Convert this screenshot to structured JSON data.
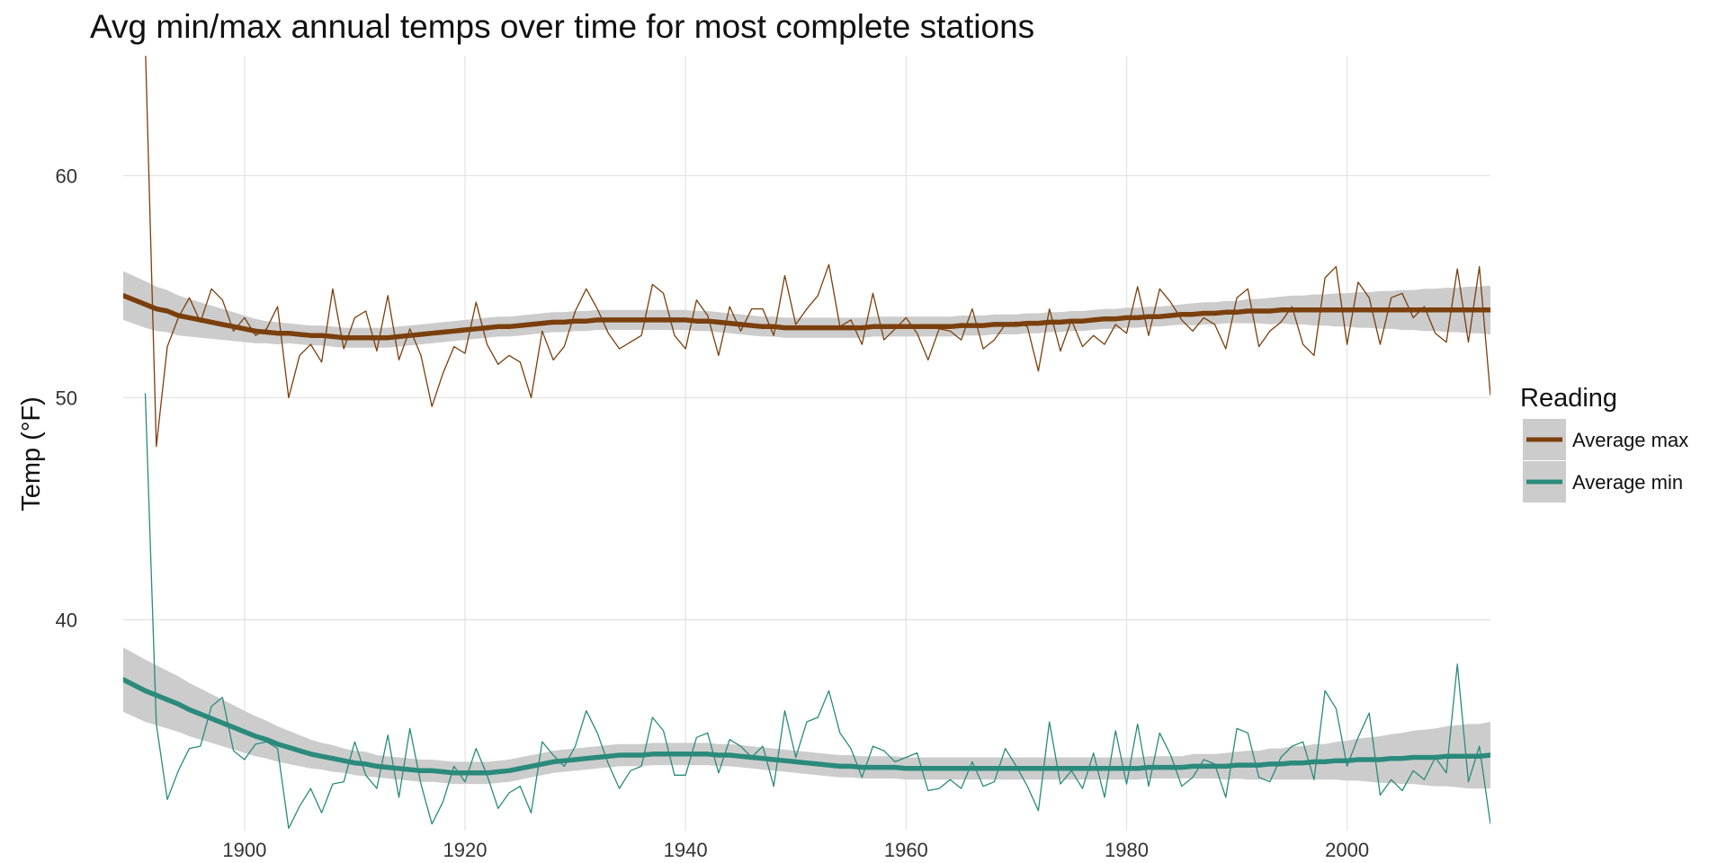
{
  "chart_data": {
    "type": "line",
    "title": "Avg min/max annual temps over time for most complete stations",
    "xlabel": "",
    "ylabel": "Temp (°F)",
    "xlim": [
      1889,
      2013
    ],
    "ylim": [
      30.5,
      65.4
    ],
    "x_ticks": [
      1900,
      1920,
      1940,
      1960,
      1980,
      2000
    ],
    "y_ticks": [
      40,
      50,
      60
    ],
    "grid": true,
    "legend": {
      "title": "Reading",
      "position": "right"
    },
    "x": [
      1891,
      1892,
      1893,
      1894,
      1895,
      1896,
      1897,
      1898,
      1899,
      1900,
      1901,
      1902,
      1903,
      1904,
      1905,
      1906,
      1907,
      1908,
      1909,
      1910,
      1911,
      1912,
      1913,
      1914,
      1915,
      1916,
      1917,
      1918,
      1919,
      1920,
      1921,
      1922,
      1923,
      1924,
      1925,
      1926,
      1927,
      1928,
      1929,
      1930,
      1931,
      1932,
      1933,
      1934,
      1935,
      1936,
      1937,
      1938,
      1939,
      1940,
      1941,
      1942,
      1943,
      1944,
      1945,
      1946,
      1947,
      1948,
      1949,
      1950,
      1951,
      1952,
      1953,
      1954,
      1955,
      1956,
      1957,
      1958,
      1959,
      1960,
      1961,
      1962,
      1963,
      1964,
      1965,
      1966,
      1967,
      1968,
      1969,
      1970,
      1971,
      1972,
      1973,
      1974,
      1975,
      1976,
      1977,
      1978,
      1979,
      1980,
      1981,
      1982,
      1983,
      1984,
      1985,
      1986,
      1987,
      1988,
      1989,
      1990,
      1991,
      1992,
      1993,
      1994,
      1995,
      1996,
      1997,
      1998,
      1999,
      2000,
      2001,
      2002,
      2003,
      2004,
      2005,
      2006,
      2007,
      2008,
      2009,
      2010,
      2011,
      2012,
      2013
    ],
    "series": [
      {
        "name": "Average max",
        "color": "#7a3f0c",
        "values": [
          66.0,
          47.8,
          52.3,
          53.6,
          54.5,
          53.4,
          54.9,
          54.4,
          53.0,
          53.6,
          52.8,
          53.1,
          54.1,
          50.0,
          51.9,
          52.4,
          51.6,
          54.9,
          52.2,
          53.6,
          53.9,
          52.1,
          54.6,
          51.7,
          53.1,
          51.9,
          49.6,
          51.1,
          52.3,
          52.0,
          54.3,
          52.4,
          51.5,
          51.9,
          51.6,
          50.0,
          53.0,
          51.7,
          52.3,
          53.9,
          54.9,
          54.0,
          52.9,
          52.2,
          52.5,
          52.8,
          55.1,
          54.7,
          52.8,
          52.2,
          54.4,
          53.7,
          51.9,
          54.1,
          53.0,
          54.0,
          54.0,
          52.8,
          55.5,
          53.3,
          54.0,
          54.6,
          56.0,
          53.2,
          53.5,
          52.4,
          54.7,
          52.6,
          53.1,
          53.6,
          52.9,
          51.7,
          53.1,
          53.0,
          52.6,
          54.0,
          52.2,
          52.6,
          53.3,
          53.4,
          53.2,
          51.2,
          54.0,
          52.1,
          53.5,
          52.3,
          52.8,
          52.4,
          53.3,
          52.9,
          55.0,
          52.8,
          54.9,
          54.3,
          53.5,
          53.0,
          53.6,
          53.3,
          52.2,
          54.5,
          54.9,
          52.3,
          53.0,
          53.4,
          54.1,
          52.4,
          51.9,
          55.4,
          55.9,
          52.4,
          55.2,
          54.5,
          52.4,
          54.5,
          54.7,
          53.6,
          54.1,
          52.9,
          52.5,
          55.8,
          52.5,
          55.9,
          50.1
        ],
        "smooth": [
          54.2,
          54.0,
          53.9,
          53.7,
          53.6,
          53.5,
          53.4,
          53.3,
          53.2,
          53.1,
          53.0,
          52.95,
          52.9,
          52.9,
          52.85,
          52.8,
          52.8,
          52.75,
          52.7,
          52.7,
          52.7,
          52.7,
          52.7,
          52.75,
          52.8,
          52.85,
          52.9,
          52.95,
          53.0,
          53.05,
          53.1,
          53.15,
          53.2,
          53.2,
          53.25,
          53.3,
          53.35,
          53.4,
          53.4,
          53.45,
          53.45,
          53.5,
          53.5,
          53.5,
          53.5,
          53.5,
          53.5,
          53.5,
          53.5,
          53.5,
          53.45,
          53.45,
          53.4,
          53.35,
          53.3,
          53.25,
          53.2,
          53.2,
          53.15,
          53.15,
          53.15,
          53.15,
          53.15,
          53.15,
          53.15,
          53.15,
          53.2,
          53.2,
          53.2,
          53.2,
          53.2,
          53.2,
          53.2,
          53.2,
          53.25,
          53.25,
          53.25,
          53.3,
          53.3,
          53.3,
          53.35,
          53.35,
          53.4,
          53.4,
          53.45,
          53.45,
          53.5,
          53.55,
          53.55,
          53.6,
          53.6,
          53.65,
          53.65,
          53.7,
          53.75,
          53.75,
          53.8,
          53.8,
          53.85,
          53.85,
          53.9,
          53.9,
          53.9,
          53.95,
          53.95,
          53.95,
          53.95,
          53.95,
          53.95,
          53.95,
          53.95,
          53.95,
          53.95,
          53.95,
          53.95,
          53.95,
          53.95,
          53.95,
          53.95,
          53.95,
          53.95,
          53.95,
          53.95
        ],
        "ci_halfwidth": [
          1.05,
          1.0,
          0.95,
          0.9,
          0.85,
          0.8,
          0.75,
          0.7,
          0.65,
          0.6,
          0.55,
          0.5,
          0.5,
          0.45,
          0.45,
          0.45,
          0.45,
          0.45,
          0.45,
          0.45,
          0.45,
          0.45,
          0.45,
          0.45,
          0.45,
          0.45,
          0.45,
          0.45,
          0.45,
          0.45,
          0.45,
          0.45,
          0.45,
          0.45,
          0.45,
          0.45,
          0.45,
          0.45,
          0.45,
          0.45,
          0.45,
          0.45,
          0.45,
          0.45,
          0.45,
          0.45,
          0.45,
          0.45,
          0.45,
          0.45,
          0.45,
          0.45,
          0.45,
          0.45,
          0.45,
          0.45,
          0.45,
          0.45,
          0.45,
          0.45,
          0.45,
          0.45,
          0.45,
          0.45,
          0.45,
          0.45,
          0.45,
          0.45,
          0.45,
          0.45,
          0.45,
          0.45,
          0.45,
          0.45,
          0.45,
          0.45,
          0.45,
          0.45,
          0.45,
          0.45,
          0.45,
          0.45,
          0.45,
          0.45,
          0.45,
          0.45,
          0.45,
          0.45,
          0.45,
          0.45,
          0.45,
          0.45,
          0.45,
          0.45,
          0.45,
          0.5,
          0.5,
          0.5,
          0.5,
          0.5,
          0.55,
          0.55,
          0.6,
          0.6,
          0.65,
          0.65,
          0.7,
          0.7,
          0.75,
          0.75,
          0.8,
          0.8,
          0.85,
          0.85,
          0.9,
          0.9,
          0.95,
          0.95,
          1.0,
          1.0,
          1.05,
          1.05,
          1.1
        ]
      },
      {
        "name": "Average min",
        "color": "#2a8a7c",
        "values": [
          50.2,
          35.3,
          31.9,
          33.2,
          34.2,
          34.3,
          36.1,
          36.5,
          34.1,
          33.7,
          34.4,
          34.5,
          34.2,
          30.6,
          31.6,
          32.4,
          31.3,
          32.6,
          32.7,
          34.5,
          33.0,
          32.4,
          34.8,
          32.0,
          35.1,
          32.6,
          30.8,
          31.8,
          33.4,
          32.7,
          34.2,
          33.0,
          31.5,
          32.2,
          32.5,
          31.3,
          34.5,
          33.9,
          33.4,
          34.3,
          35.9,
          34.9,
          33.5,
          32.4,
          33.2,
          33.4,
          35.6,
          35.0,
          33.0,
          33.0,
          34.7,
          34.9,
          33.1,
          34.6,
          34.3,
          33.8,
          34.3,
          32.5,
          35.9,
          33.8,
          35.4,
          35.6,
          36.8,
          34.9,
          34.2,
          32.9,
          34.3,
          34.1,
          33.6,
          33.8,
          34.0,
          32.3,
          32.4,
          32.8,
          32.4,
          33.6,
          32.5,
          32.7,
          34.2,
          33.4,
          32.5,
          31.4,
          35.4,
          32.6,
          33.2,
          32.4,
          34.0,
          32.0,
          35.0,
          32.6,
          35.3,
          32.5,
          34.9,
          33.9,
          32.5,
          32.9,
          33.7,
          33.5,
          32.0,
          35.1,
          34.9,
          32.9,
          32.7,
          33.8,
          34.3,
          34.5,
          32.8,
          36.8,
          36.0,
          33.4,
          34.7,
          35.8,
          32.1,
          32.8,
          32.3,
          33.2,
          32.8,
          33.8,
          33.1,
          38.0,
          32.7,
          34.3,
          30.8
        ],
        "smooth": [
          36.8,
          36.6,
          36.4,
          36.2,
          35.95,
          35.75,
          35.55,
          35.35,
          35.15,
          34.95,
          34.75,
          34.6,
          34.4,
          34.25,
          34.1,
          33.95,
          33.85,
          33.75,
          33.65,
          33.55,
          33.5,
          33.4,
          33.35,
          33.3,
          33.25,
          33.2,
          33.2,
          33.15,
          33.1,
          33.1,
          33.1,
          33.1,
          33.15,
          33.2,
          33.3,
          33.4,
          33.5,
          33.6,
          33.65,
          33.7,
          33.75,
          33.8,
          33.85,
          33.9,
          33.9,
          33.9,
          33.95,
          33.95,
          33.95,
          33.95,
          33.95,
          33.95,
          33.9,
          33.9,
          33.85,
          33.8,
          33.75,
          33.7,
          33.65,
          33.6,
          33.55,
          33.5,
          33.45,
          33.4,
          33.4,
          33.35,
          33.35,
          33.35,
          33.35,
          33.3,
          33.3,
          33.3,
          33.3,
          33.3,
          33.3,
          33.3,
          33.3,
          33.3,
          33.3,
          33.3,
          33.3,
          33.3,
          33.3,
          33.3,
          33.3,
          33.3,
          33.3,
          33.3,
          33.3,
          33.3,
          33.3,
          33.35,
          33.35,
          33.35,
          33.35,
          33.4,
          33.4,
          33.4,
          33.4,
          33.45,
          33.45,
          33.45,
          33.5,
          33.5,
          33.55,
          33.55,
          33.6,
          33.6,
          33.65,
          33.65,
          33.7,
          33.7,
          33.7,
          33.75,
          33.75,
          33.8,
          33.8,
          33.8,
          33.85,
          33.85,
          33.85,
          33.85,
          33.9
        ],
        "ci_halfwidth": [
          1.4,
          1.35,
          1.3,
          1.25,
          1.2,
          1.15,
          1.1,
          1.05,
          1.0,
          0.95,
          0.9,
          0.85,
          0.8,
          0.75,
          0.7,
          0.65,
          0.6,
          0.6,
          0.55,
          0.55,
          0.55,
          0.5,
          0.5,
          0.5,
          0.5,
          0.5,
          0.5,
          0.5,
          0.5,
          0.5,
          0.5,
          0.5,
          0.5,
          0.5,
          0.5,
          0.5,
          0.5,
          0.5,
          0.5,
          0.5,
          0.5,
          0.5,
          0.5,
          0.5,
          0.5,
          0.5,
          0.5,
          0.5,
          0.5,
          0.5,
          0.5,
          0.5,
          0.5,
          0.5,
          0.5,
          0.5,
          0.5,
          0.5,
          0.5,
          0.5,
          0.5,
          0.5,
          0.5,
          0.5,
          0.5,
          0.5,
          0.5,
          0.5,
          0.5,
          0.5,
          0.5,
          0.5,
          0.5,
          0.5,
          0.5,
          0.5,
          0.5,
          0.5,
          0.5,
          0.5,
          0.5,
          0.5,
          0.5,
          0.5,
          0.5,
          0.5,
          0.5,
          0.5,
          0.5,
          0.5,
          0.5,
          0.5,
          0.5,
          0.5,
          0.5,
          0.55,
          0.55,
          0.55,
          0.6,
          0.6,
          0.65,
          0.65,
          0.7,
          0.7,
          0.75,
          0.75,
          0.8,
          0.8,
          0.85,
          0.9,
          0.95,
          1.0,
          1.05,
          1.1,
          1.15,
          1.2,
          1.25,
          1.3,
          1.35,
          1.4,
          1.45,
          1.45,
          1.5
        ]
      }
    ],
    "smooth_start": {
      "x": 1889,
      "max": 54.6,
      "min": 37.3
    },
    "band_color": "#cccccc"
  }
}
